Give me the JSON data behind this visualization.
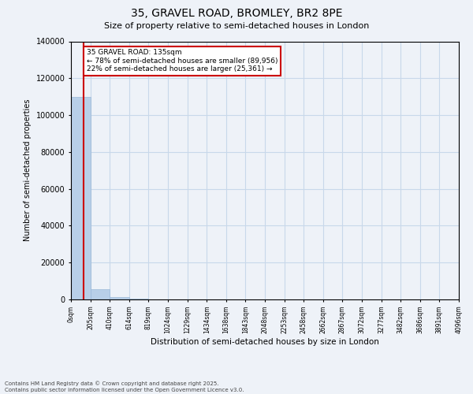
{
  "title": "35, GRAVEL ROAD, BROMLEY, BR2 8PE",
  "subtitle": "Size of property relative to semi-detached houses in London",
  "xlabel": "Distribution of semi-detached houses by size in London",
  "ylabel": "Number of semi-detached properties",
  "footer_line1": "Contains HM Land Registry data © Crown copyright and database right 2025.",
  "footer_line2": "Contains public sector information licensed under the Open Government Licence v3.0.",
  "annotation_title": "35 GRAVEL ROAD: 135sqm",
  "annotation_line2": "← 78% of semi-detached houses are smaller (89,956)",
  "annotation_line3": "22% of semi-detached houses are larger (25,361) →",
  "subject_size": 135,
  "bar_edges": [
    0,
    205,
    410,
    614,
    819,
    1024,
    1229,
    1434,
    1638,
    1843,
    2048,
    2253,
    2458,
    2662,
    2867,
    3072,
    3277,
    3482,
    3686,
    3891,
    4096
  ],
  "bar_labels": [
    "0sqm",
    "205sqm",
    "410sqm",
    "614sqm",
    "819sqm",
    "1024sqm",
    "1229sqm",
    "1434sqm",
    "1638sqm",
    "1843sqm",
    "2048sqm",
    "2253sqm",
    "2458sqm",
    "2662sqm",
    "2867sqm",
    "3072sqm",
    "3277sqm",
    "3482sqm",
    "3686sqm",
    "3891sqm",
    "4096sqm"
  ],
  "bar_heights": [
    110000,
    5500,
    1200,
    400,
    200,
    100,
    60,
    40,
    30,
    20,
    15,
    12,
    10,
    8,
    7,
    6,
    5,
    5,
    4,
    4
  ],
  "bar_color": "#b8cfe8",
  "bar_edge_color": "#9ab8d8",
  "grid_color": "#c8d8ea",
  "annotation_box_color": "#cc0000",
  "vline_color": "#cc0000",
  "ylim": [
    0,
    140000
  ],
  "yticks": [
    0,
    20000,
    40000,
    60000,
    80000,
    100000,
    120000,
    140000
  ],
  "ytick_labels": [
    "0",
    "20000",
    "40000",
    "60000",
    "80000",
    "100000",
    "120000",
    "140000"
  ],
  "bg_color": "#eef2f8",
  "plot_bg_color": "#eef2f8"
}
